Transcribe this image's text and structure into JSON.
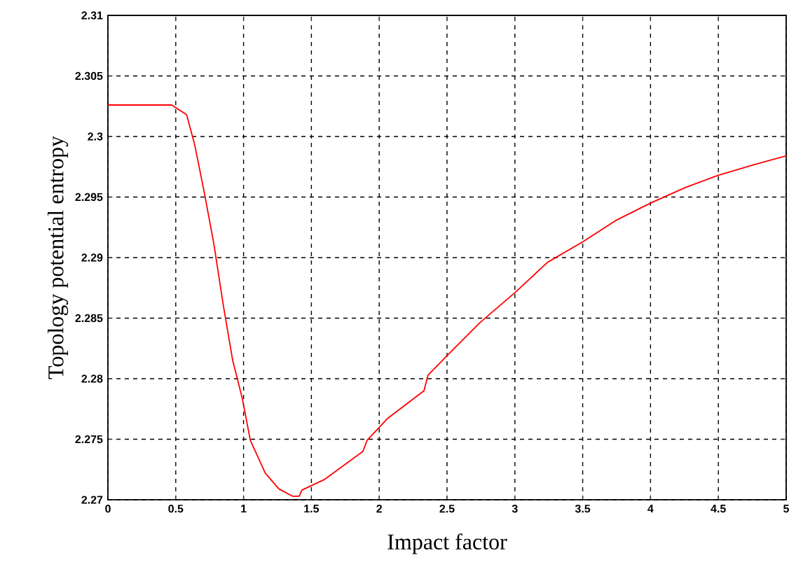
{
  "chart_data": {
    "type": "line",
    "xlabel": "Impact factor",
    "ylabel": "Topology potential entropy",
    "xlim": [
      0,
      5
    ],
    "ylim": [
      2.27,
      2.31
    ],
    "xticks": [
      0,
      0.5,
      1,
      1.5,
      2,
      2.5,
      3,
      3.5,
      4,
      4.5,
      5
    ],
    "yticks": [
      2.27,
      2.275,
      2.28,
      2.285,
      2.29,
      2.295,
      2.3,
      2.305,
      2.31
    ],
    "grid": true,
    "series": [
      {
        "color": "#ff0000",
        "x": [
          0,
          0.47,
          0.58,
          0.64,
          0.71,
          0.78,
          0.85,
          0.92,
          0.99,
          1.05,
          1.16,
          1.26,
          1.36,
          1.41,
          1.43,
          1.6,
          1.88,
          1.91,
          2.06,
          2.33,
          2.36,
          2.5,
          2.74,
          3.0,
          3.24,
          3.5,
          3.75,
          4.0,
          4.26,
          4.5,
          4.77,
          5.0
        ],
        "values": [
          2.3026,
          2.3026,
          2.3018,
          2.2993,
          2.2954,
          2.2912,
          2.2861,
          2.2815,
          2.2784,
          2.2749,
          2.2722,
          2.2709,
          2.2703,
          2.2703,
          2.2708,
          2.2717,
          2.274,
          2.2749,
          2.2767,
          2.279,
          2.2803,
          2.2819,
          2.2846,
          2.2871,
          2.2896,
          2.2913,
          2.2931,
          2.2945,
          2.2958,
          2.2968,
          2.2977,
          2.2984
        ]
      }
    ]
  }
}
